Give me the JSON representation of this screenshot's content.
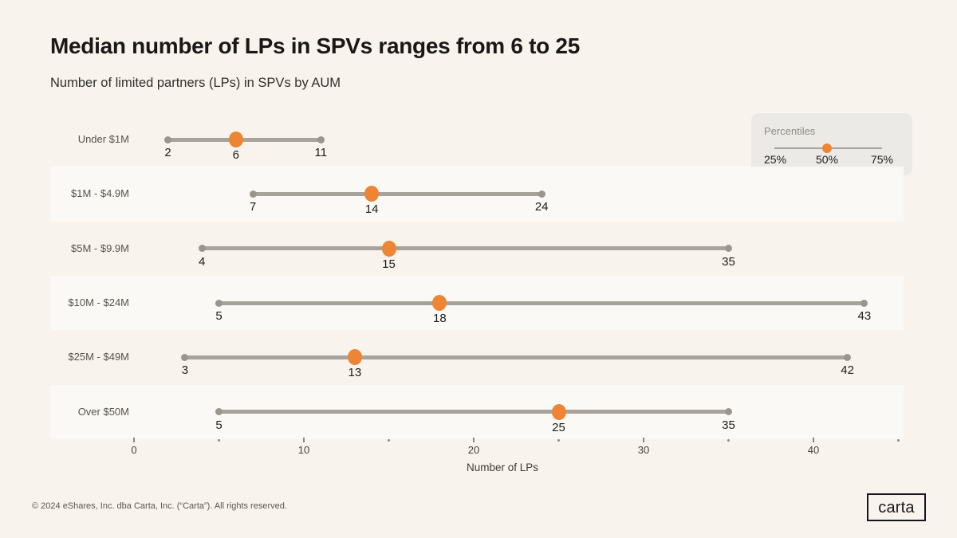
{
  "header": {
    "title": "Median number of LPs in SPVs ranges from 6 to 25",
    "subtitle": "Number of limited partners (LPs) in SPVs by AUM"
  },
  "legend": {
    "title": "Percentiles",
    "labels": [
      "25%",
      "50%",
      "75%"
    ]
  },
  "chart_data": {
    "type": "dumbbell",
    "categories": [
      "Under $1M",
      "$1M - $4.9M",
      "$5M - $9.9M",
      "$10M - $24M",
      "$25M - $49M",
      "Over $50M"
    ],
    "series": [
      {
        "name": "25th percentile",
        "values": [
          2,
          7,
          4,
          5,
          3,
          5
        ]
      },
      {
        "name": "50th percentile (median)",
        "values": [
          6,
          14,
          15,
          18,
          13,
          25
        ]
      },
      {
        "name": "75th percentile",
        "values": [
          11,
          24,
          35,
          43,
          42,
          35
        ]
      }
    ],
    "xlabel": "Number of LPs",
    "xlim": [
      0,
      45
    ],
    "x_major_ticks": [
      0,
      10,
      20,
      30,
      40
    ],
    "x_minor_ticks": [
      5,
      15,
      25,
      35,
      45
    ],
    "legend_position": "top-right",
    "grid": false,
    "accent_color": "#ED8534",
    "range_line_color": "#A6A29C",
    "endpoint_color": "#9A968F",
    "stripe_color": "#FBF9F5"
  },
  "footer": {
    "copyright": "© 2024 eShares, Inc. dba Carta, Inc. (“Carta”). All rights reserved.",
    "logo_text": "carta"
  }
}
